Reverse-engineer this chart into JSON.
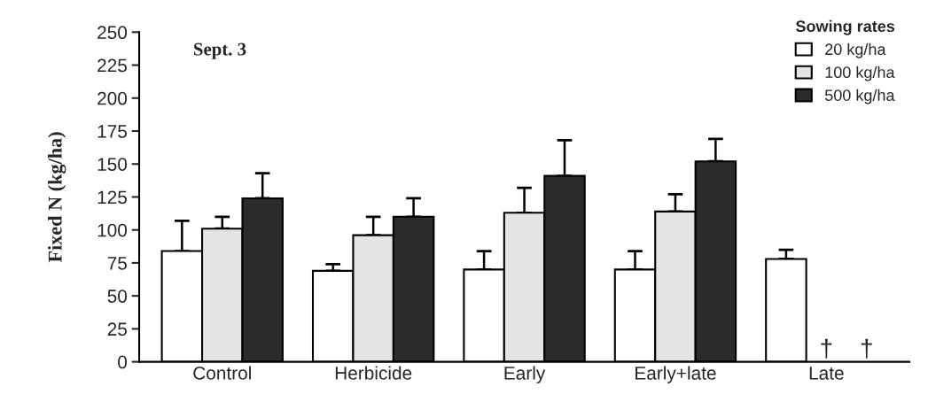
{
  "chart_data": {
    "type": "bar",
    "title": "Sept. 3",
    "ylabel": "Fixed N (kg/ha)",
    "legend_title": "Sowing rates",
    "categories": [
      "Control",
      "Herbicide",
      "Early",
      "Early+late",
      "Late"
    ],
    "series": [
      {
        "name": "20 kg/ha",
        "color": "#ffffff",
        "values": [
          84,
          69,
          70,
          70,
          78
        ],
        "errors": [
          [
            84,
            107
          ],
          [
            69,
            74
          ],
          [
            70,
            84
          ],
          [
            70,
            84
          ],
          [
            78,
            85
          ]
        ]
      },
      {
        "name": "100 kg/ha",
        "color": "#e4e4e4",
        "values": [
          101,
          96,
          113,
          114,
          null
        ],
        "errors": [
          [
            101,
            110
          ],
          [
            96,
            110
          ],
          [
            113,
            132
          ],
          [
            114,
            127
          ],
          null
        ]
      },
      {
        "name": "500 kg/ha",
        "color": "#2b2b2b",
        "values": [
          124,
          110,
          141,
          152,
          null
        ],
        "errors": [
          [
            124,
            143
          ],
          [
            110,
            124
          ],
          [
            141,
            168
          ],
          [
            152,
            169
          ],
          null
        ]
      }
    ],
    "annotations": [
      "†",
      "†"
    ],
    "ylim": [
      0,
      250
    ],
    "yticks": [
      0,
      25,
      50,
      75,
      100,
      125,
      150,
      175,
      200,
      225,
      250
    ],
    "grid": false,
    "legend": "top right"
  }
}
